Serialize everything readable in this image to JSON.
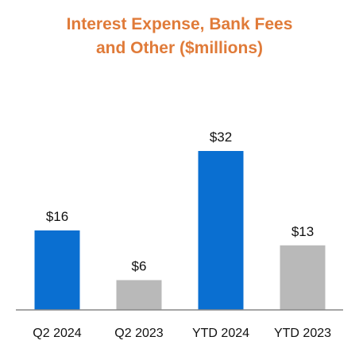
{
  "chart_data": {
    "type": "bar",
    "title": "Interest Expense, Bank Fees and Other ($millions)",
    "title_lines": [
      "Interest Expense, Bank Fees",
      "and Other ($millions)"
    ],
    "title_color": "#E07B39",
    "categories": [
      "Q2 2024",
      "Q2 2023",
      "YTD 2024",
      "YTD 2023"
    ],
    "values": [
      16,
      6,
      32,
      13
    ],
    "value_labels": [
      "$16",
      "$6",
      "$32",
      "$13"
    ],
    "bar_colors": [
      "#0A6FD1",
      "#B9B9B9",
      "#0A6FD1",
      "#B9B9B9"
    ],
    "axis_color": "#888888",
    "xlabel": "",
    "ylabel": "",
    "ylim": [
      0,
      40
    ],
    "grid": false,
    "legend": "none"
  }
}
